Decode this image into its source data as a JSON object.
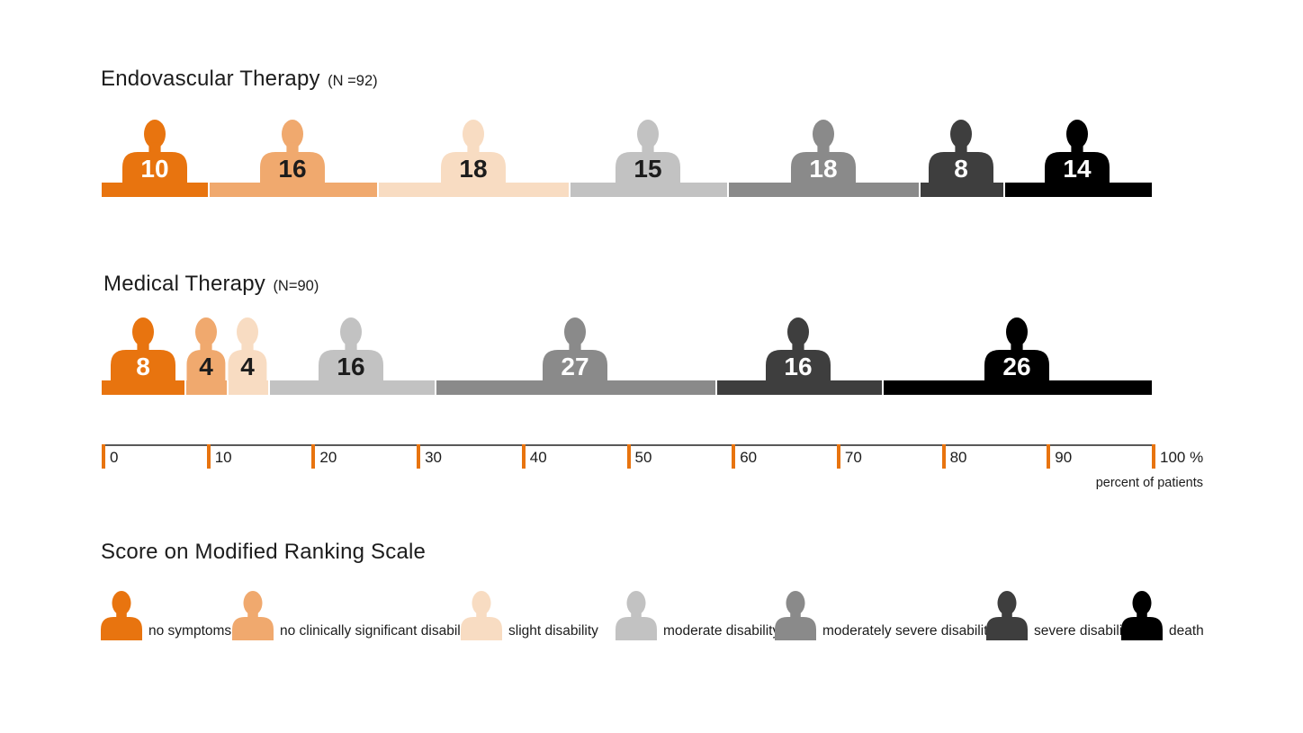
{
  "chart_data": {
    "type": "bar",
    "subtype": "horizontal-stacked-pictogram",
    "unit": "percent of patients",
    "categories": [
      "no symptoms",
      "no clinically significant disability",
      "slight disability",
      "moderate disability",
      "moderately severe disability",
      "severe disability",
      "death"
    ],
    "colors": [
      "#e8740f",
      "#f0a96e",
      "#f8dcc2",
      "#c2c2c2",
      "#8a8a8a",
      "#3e3e3e",
      "#000000"
    ],
    "value_label_colors": [
      "#ffffff",
      "#1c1c1c",
      "#1c1c1c",
      "#1c1c1c",
      "#ffffff",
      "#ffffff",
      "#ffffff"
    ],
    "series": [
      {
        "name": "Endovascular Therapy",
        "n_label": "(N =92)",
        "values": [
          10,
          16,
          18,
          15,
          18,
          8,
          14
        ]
      },
      {
        "name": "Medical Therapy",
        "n_label": "(N=90)",
        "values": [
          8,
          4,
          4,
          16,
          27,
          16,
          26
        ]
      }
    ],
    "axis": {
      "min": 0,
      "max": 100,
      "step": 10,
      "tick_labels": [
        "0",
        "10",
        "20",
        "30",
        "40",
        "50",
        "60",
        "70",
        "80",
        "90",
        "100 %"
      ],
      "tick_color": "#e8740f",
      "caption": "percent of patients"
    },
    "legend": {
      "title": "Score on Modified Ranking Scale"
    }
  }
}
